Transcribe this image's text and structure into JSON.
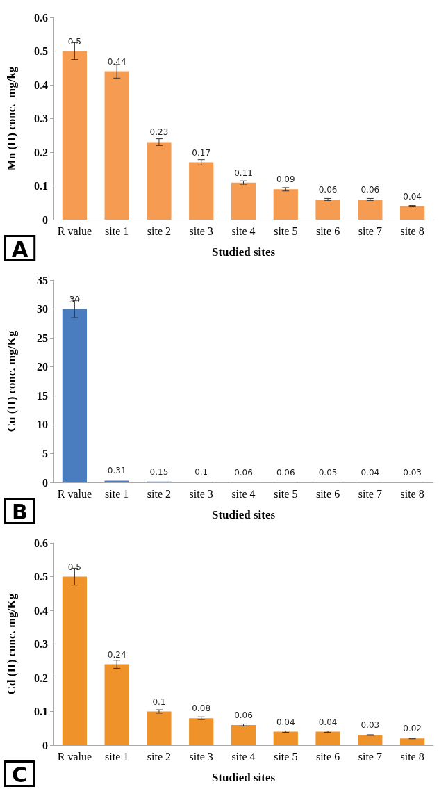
{
  "chart_data": [
    {
      "type": "bar",
      "xlabel": "Studied sites",
      "ylabel": "Mn (II) conc.  mg/kg",
      "annotations": [
        "A"
      ],
      "categories": [
        "R value",
        "site 1",
        "site 2",
        "site 3",
        "site 4",
        "site 5",
        "site 6",
        "site 7",
        "site 8"
      ],
      "values": [
        0.5,
        0.44,
        0.23,
        0.17,
        0.11,
        0.09,
        0.06,
        0.06,
        0.04
      ],
      "errors": [
        0.025,
        0.02,
        0.01,
        0.008,
        0.005,
        0.005,
        0.003,
        0.003,
        0.002
      ],
      "color": "#f59c52",
      "ylim": [
        0,
        0.6
      ],
      "yticks": [
        0,
        0.1,
        0.2,
        0.3,
        0.4,
        0.5,
        0.6
      ],
      "grid": false,
      "data_labels": true
    },
    {
      "type": "bar",
      "xlabel": "Studied sites",
      "ylabel": "Cu (II) conc. mg/Kg",
      "annotations": [
        "B"
      ],
      "categories": [
        "R value",
        "site 1",
        "site 2",
        "site 3",
        "site 4",
        "site 5",
        "site 6",
        "site 7",
        "site 8"
      ],
      "values": [
        30,
        0.31,
        0.15,
        0.1,
        0.06,
        0.06,
        0.05,
        0.04,
        0.03
      ],
      "errors": [
        1.5,
        null,
        null,
        null,
        null,
        null,
        null,
        null,
        null
      ],
      "color": "#4a7dbf",
      "ylim": [
        0,
        35
      ],
      "yticks": [
        0,
        5,
        10,
        15,
        20,
        25,
        30,
        35
      ],
      "grid": false,
      "data_labels": true
    },
    {
      "type": "bar",
      "xlabel": "Studied sites",
      "ylabel": "Cd (II) conc. mg/Kg",
      "annotations": [
        "C"
      ],
      "categories": [
        "R value",
        "site 1",
        "site 2",
        "site 3",
        "site 4",
        "site 5",
        "site 6",
        "site 7",
        "site 8"
      ],
      "values": [
        0.5,
        0.24,
        0.1,
        0.08,
        0.06,
        0.04,
        0.04,
        0.03,
        0.02
      ],
      "errors": [
        0.025,
        0.012,
        0.005,
        0.004,
        0.003,
        0.002,
        0.002,
        0.001,
        0.001
      ],
      "color": "#f0922a",
      "ylim": [
        0,
        0.6
      ],
      "yticks": [
        0,
        0.1,
        0.2,
        0.3,
        0.4,
        0.5,
        0.6
      ],
      "grid": false,
      "data_labels": true
    }
  ]
}
